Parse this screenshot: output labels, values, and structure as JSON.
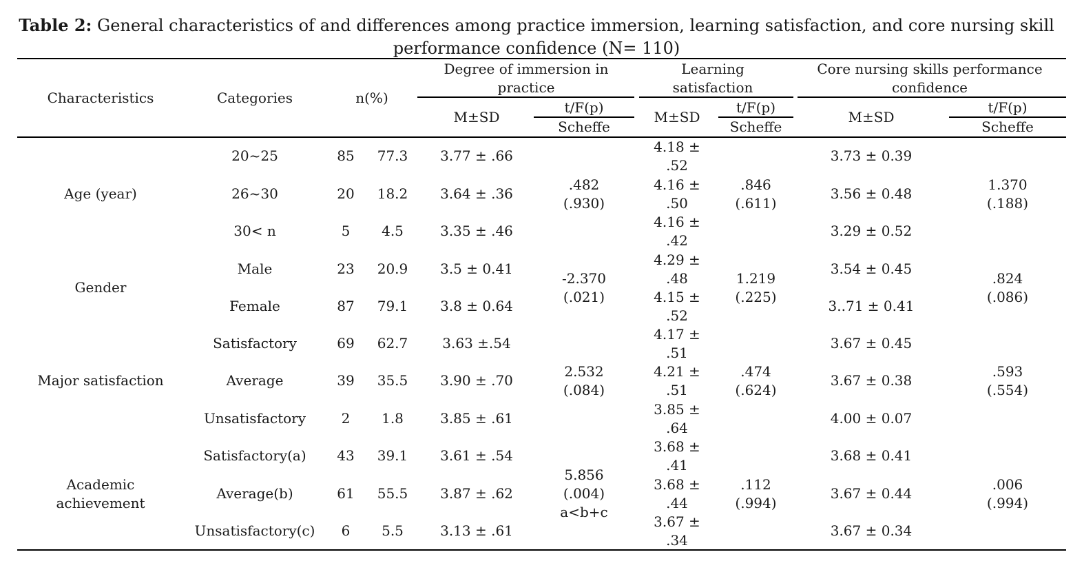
{
  "title": {
    "bold": "Table 2:",
    "line1": "General characteristics of and differences among practice immersion, learning satisfaction, and core nursing skill",
    "line2": "performance confidence (N= 110)"
  },
  "header": {
    "characteristics": "Characteristics",
    "categories": "Categories",
    "n": "n(%)",
    "immersion_l1": "Degree of immersion in",
    "immersion_l2": "practice",
    "learning_l1": "Learning",
    "learning_l2": "satisfaction",
    "core_l1": "Core nursing skills performance",
    "core_l2": "confidence",
    "msd": "M±SD",
    "tfp": "t/F(p)",
    "scheffe": "Scheffe"
  },
  "rows": [
    {
      "cat": "20~25",
      "n": "85",
      "pct": "77.3",
      "imm": "3.77 ± .66",
      "ls1": "4.18 ±",
      "ls2": ".52",
      "core": "3.73 ± 0.39"
    },
    {
      "cat": "26~30",
      "n": "20",
      "pct": "18.2",
      "imm": "3.64 ± .36",
      "ls1": "4.16 ±",
      "ls2": ".50",
      "core": "3.56 ± 0.48"
    },
    {
      "cat": "30< n",
      "n": "5",
      "pct": "4.5",
      "imm": "3.35 ± .46",
      "ls1": "4.16 ±",
      "ls2": ".42",
      "core": "3.29 ± 0.52"
    },
    {
      "cat": "Male",
      "n": "23",
      "pct": "20.9",
      "imm": "3.5 ± 0.41",
      "ls1": "4.29 ±",
      "ls2": ".48",
      "core": "3.54 ± 0.45"
    },
    {
      "cat": "Female",
      "n": "87",
      "pct": "79.1",
      "imm": "3.8 ± 0.64",
      "ls1": "4.15 ±",
      "ls2": ".52",
      "core": "3..71 ± 0.41"
    },
    {
      "cat": "Satisfactory",
      "n": "69",
      "pct": "62.7",
      "imm": "3.63 ±.54",
      "ls1": "4.17 ±",
      "ls2": ".51",
      "core": "3.67 ± 0.45"
    },
    {
      "cat": "Average",
      "n": "39",
      "pct": "35.5",
      "imm": "3.90 ± .70",
      "ls1": "4.21 ±",
      "ls2": ".51",
      "core": "3.67 ± 0.38"
    },
    {
      "cat": "Unsatisfactory",
      "n": "2",
      "pct": "1.8",
      "imm": "3.85 ± .61",
      "ls1": "3.85 ±",
      "ls2": ".64",
      "core": "4.00 ± 0.07"
    },
    {
      "cat": "Satisfactory(a)",
      "n": "43",
      "pct": "39.1",
      "imm": "3.61 ± .54",
      "ls1": "3.68 ±",
      "ls2": ".41",
      "core": "3.68 ± 0.41"
    },
    {
      "cat": "Average(b)",
      "n": "61",
      "pct": "55.5",
      "imm": "3.87 ± .62",
      "ls1": "3.68 ±",
      "ls2": ".44",
      "core": "3.67 ± 0.44"
    },
    {
      "cat": "Unsatisfactory(c)",
      "n": "6",
      "pct": "5.5",
      "imm": "3.13 ± .61",
      "ls1": "3.67 ±",
      "ls2": ".34",
      "core": "3.67 ± 0.34"
    }
  ],
  "groups": [
    {
      "label1": "Age (year)",
      "label2": "",
      "imm1": ".482",
      "imm2": "(.930)",
      "imm3": "",
      "ls1": ".846",
      "ls2": "(.611)",
      "core1": "1.370",
      "core2": "(.188)"
    },
    {
      "label1": "Gender",
      "label2": "",
      "imm1": "-2.370",
      "imm2": "(.021)",
      "imm3": "",
      "ls1": "1.219",
      "ls2": "(.225)",
      "core1": ".824",
      "core2": "(.086)"
    },
    {
      "label1": "Major satisfaction",
      "label2": "",
      "imm1": "2.532",
      "imm2": "(.084)",
      "imm3": "",
      "ls1": ".474",
      "ls2": "(.624)",
      "core1": ".593",
      "core2": "(.554)"
    },
    {
      "label1": "Academic",
      "label2": "achievement",
      "imm1": "5.856",
      "imm2": "(.004)",
      "imm3": "a<b+c",
      "ls1": ".112",
      "ls2": "(.994)",
      "core1": ".006",
      "core2": "(.994)"
    }
  ]
}
